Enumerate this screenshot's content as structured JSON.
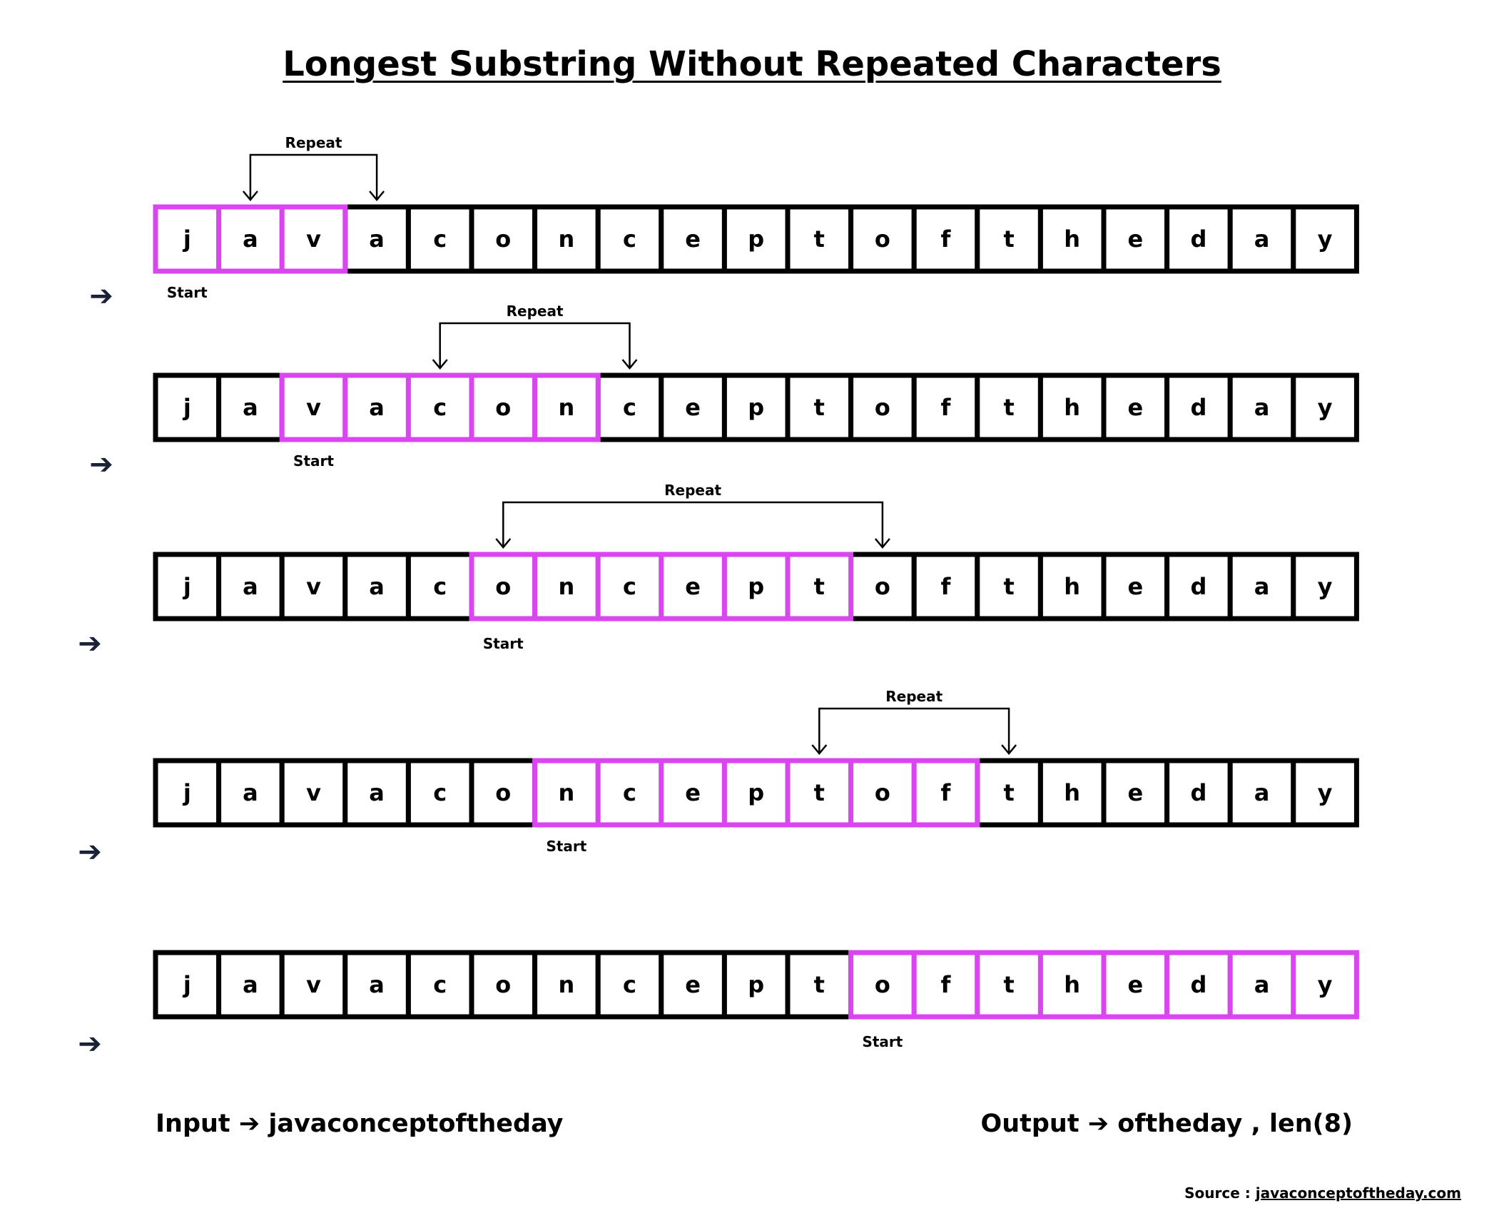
{
  "title": "Longest Substring Without Repeated Characters",
  "characters": [
    "j",
    "a",
    "v",
    "a",
    "c",
    "o",
    "n",
    "c",
    "e",
    "p",
    "t",
    "o",
    "f",
    "t",
    "h",
    "e",
    "d",
    "a",
    "y"
  ],
  "labels": {
    "repeat": "Repeat",
    "start": "Start",
    "step_arrow": "➔"
  },
  "steps": [
    {
      "window_start": 0,
      "window_end": 2,
      "repeat_pair": [
        1,
        3
      ]
    },
    {
      "window_start": 2,
      "window_end": 6,
      "repeat_pair": [
        4,
        7
      ]
    },
    {
      "window_start": 5,
      "window_end": 10,
      "repeat_pair": [
        5,
        11
      ]
    },
    {
      "window_start": 6,
      "window_end": 12,
      "repeat_pair": [
        10,
        13
      ]
    },
    {
      "window_start": 11,
      "window_end": 18,
      "repeat_pair": null
    }
  ],
  "input": {
    "label": "Input",
    "arrow": "➔",
    "value": "javaconceptoftheday"
  },
  "output": {
    "label": "Output",
    "arrow": "➔",
    "value": "oftheday , len(8)"
  },
  "source": {
    "label": "Source :",
    "link": "javaconceptoftheday.com"
  },
  "colors": {
    "highlight": "#d946ef",
    "box": "#000000",
    "arrow": "#1a2238"
  }
}
